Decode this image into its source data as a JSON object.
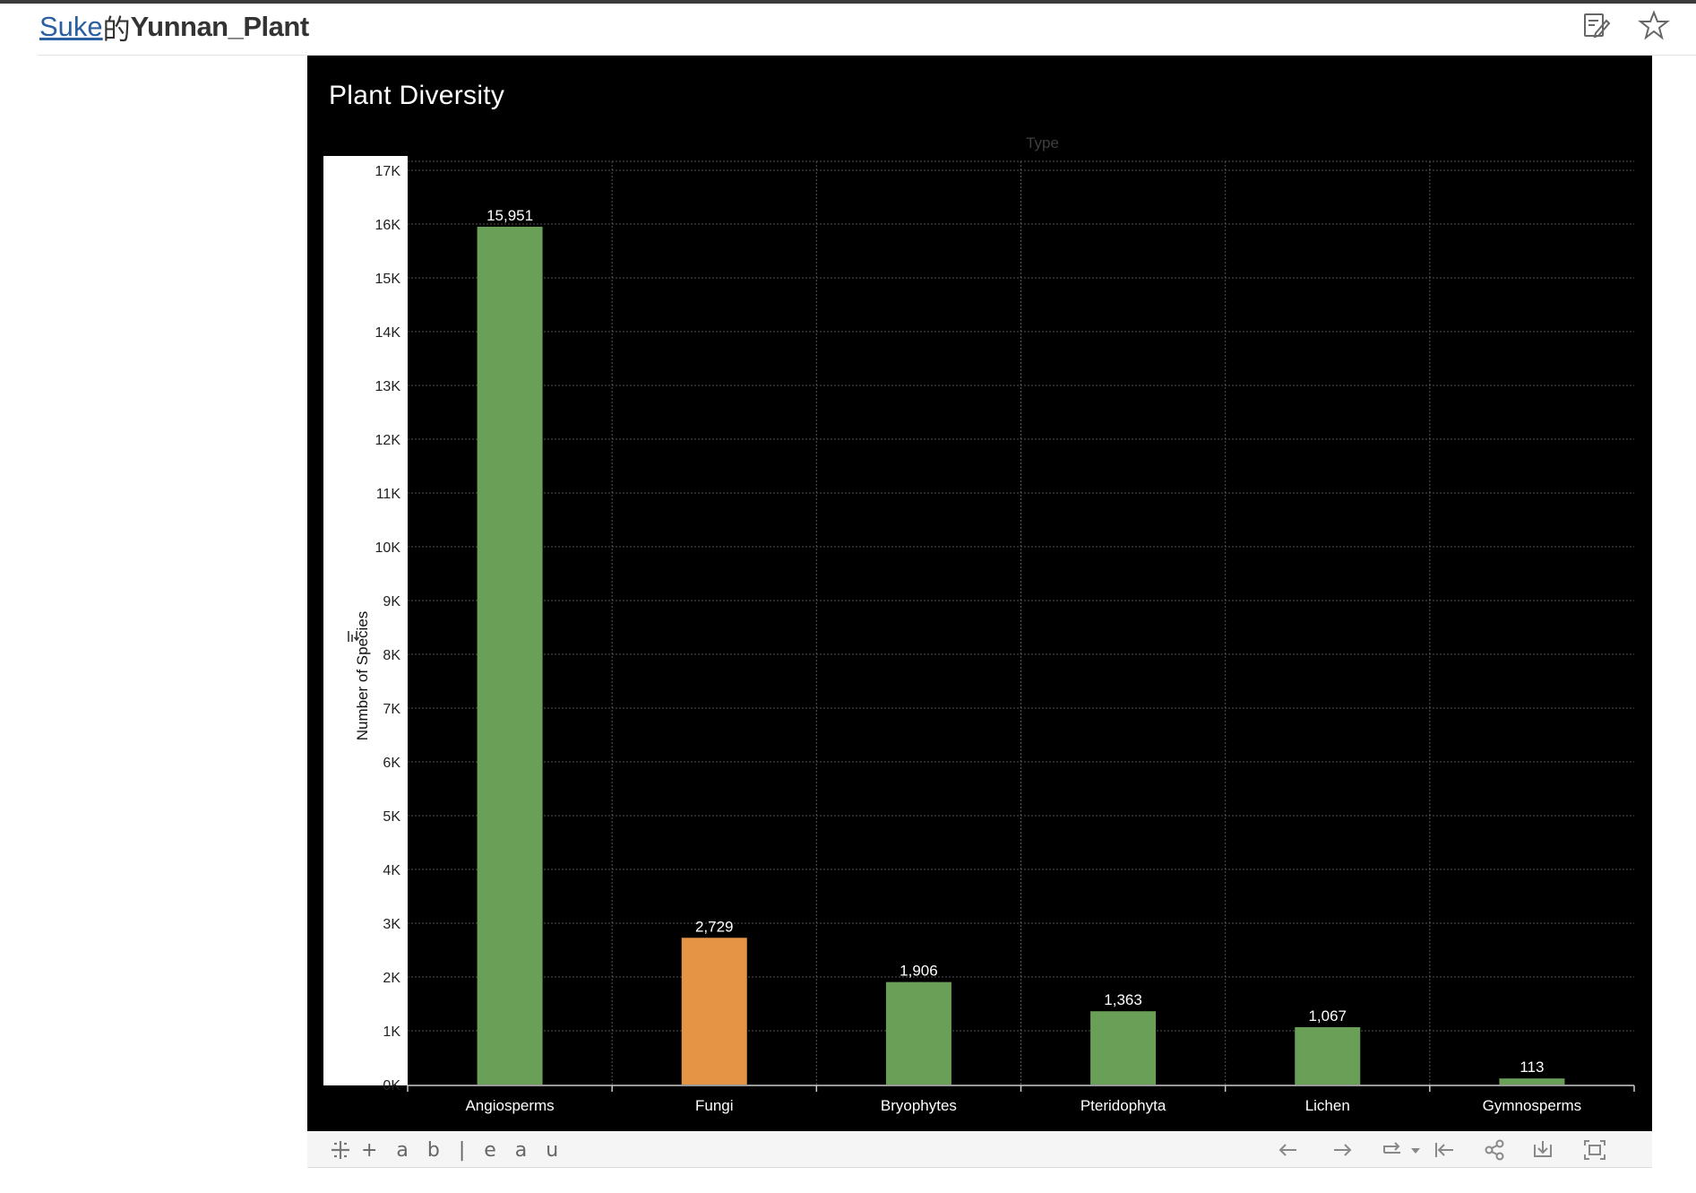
{
  "header": {
    "author_link": "Suke",
    "connector": "的",
    "workbook_title": "Yunnan_Plant"
  },
  "toolbar": {
    "logo_text": "+ a b | e a u"
  },
  "chart_data": {
    "type": "bar",
    "title": "Plant Diversity",
    "column_header": "Type",
    "xlabel": "",
    "ylabel": "Number of Species",
    "categories": [
      "Angiosperms",
      "Fungi",
      "Bryophytes",
      "Pteridophyta",
      "Lichen",
      "Gymnosperms"
    ],
    "values": [
      15951,
      2729,
      1906,
      1363,
      1067,
      113
    ],
    "value_labels": [
      "15,951",
      "2,729",
      "1,906",
      "1,363",
      "1,067",
      "113"
    ],
    "bar_colors": [
      "#6a9f58",
      "#e49444",
      "#6a9f58",
      "#6a9f58",
      "#6a9f58",
      "#6a9f58"
    ],
    "ylim": [
      0,
      17000
    ],
    "yticks": [
      0,
      1000,
      2000,
      3000,
      4000,
      5000,
      6000,
      7000,
      8000,
      9000,
      10000,
      11000,
      12000,
      13000,
      14000,
      15000,
      16000,
      17000
    ],
    "ytick_labels": [
      "0K",
      "1K",
      "2K",
      "3K",
      "4K",
      "5K",
      "6K",
      "7K",
      "8K",
      "9K",
      "10K",
      "11K",
      "12K",
      "13K",
      "14K",
      "15K",
      "16K",
      "17K"
    ],
    "grid": true,
    "legend": "none",
    "colors": {
      "background": "#000000",
      "gridline": "#555555",
      "text": "#ffffff"
    }
  }
}
